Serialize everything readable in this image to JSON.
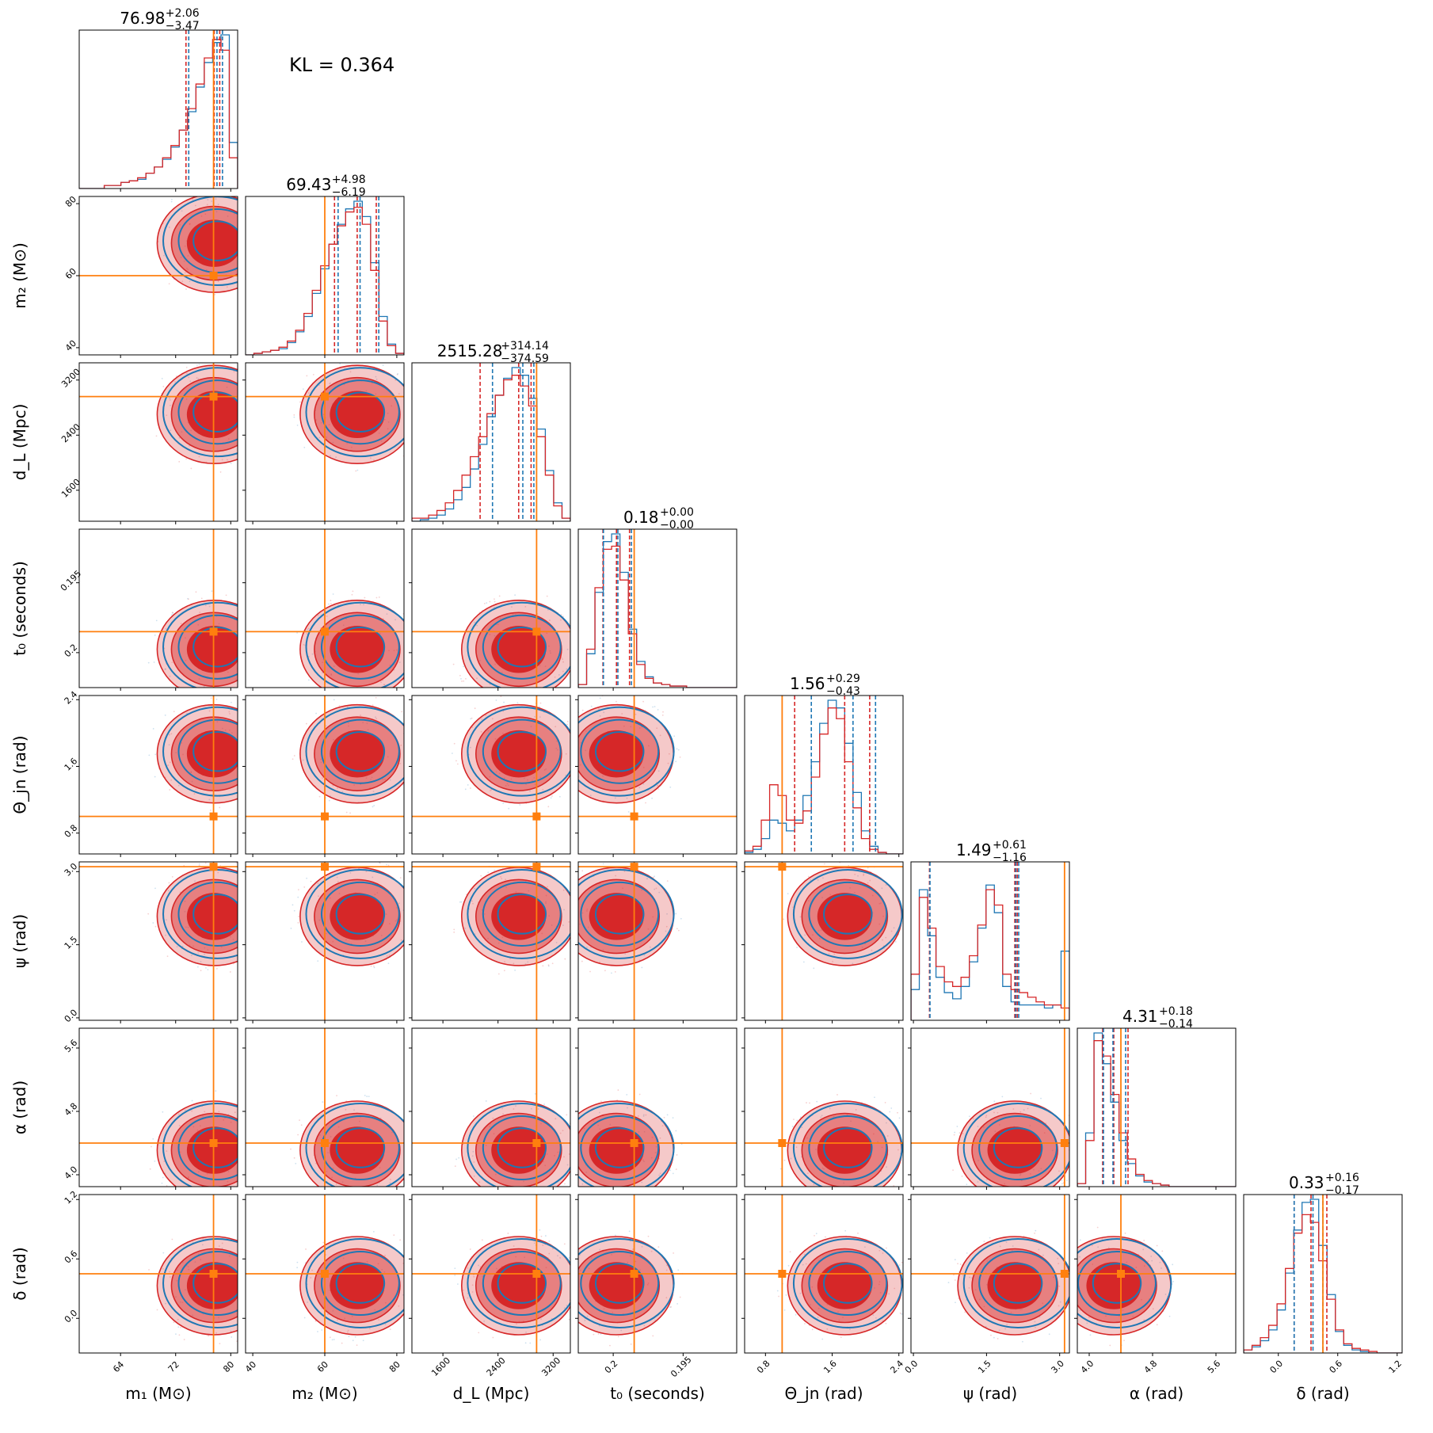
{
  "chart_data": {
    "type": "corner",
    "kl_label": "KL = 0.364",
    "series": [
      {
        "name": "",
        "color": "#d62728"
      },
      {
        "name": "",
        "color": "#1f77b4"
      }
    ],
    "truth_color": "#ff7f0e",
    "params": [
      {
        "key": "m1",
        "label": "m₁ (M⊙)",
        "range": [
          58,
          81
        ],
        "ticks": [
          64,
          72,
          80
        ],
        "truth": 77.5,
        "title": {
          "main": "76.98",
          "plus": "+2.06",
          "minus": "−3.47"
        },
        "quant_red": [
          73.5,
          77.6,
          78.4
        ],
        "quant_blue": [
          73.9,
          78.0,
          78.8
        ],
        "hist_red": [
          0,
          0,
          0,
          0.02,
          0.02,
          0.04,
          0.05,
          0.07,
          0.1,
          0.14,
          0.2,
          0.28,
          0.38,
          0.52,
          0.68,
          0.85,
          0.97,
          0.9,
          0.2
        ],
        "hist_blue": [
          0,
          0,
          0,
          0.02,
          0.02,
          0.04,
          0.05,
          0.06,
          0.1,
          0.14,
          0.19,
          0.27,
          0.38,
          0.5,
          0.66,
          0.82,
          0.95,
          1.0,
          0.3
        ]
      },
      {
        "key": "m2",
        "label": "m₂ (M⊙)",
        "range": [
          38,
          82
        ],
        "ticks": [
          40,
          60,
          80
        ],
        "truth": 60,
        "title": {
          "main": "69.43",
          "plus": "+4.98",
          "minus": "−6.19"
        },
        "quant_red": [
          62.7,
          69.0,
          74.3
        ],
        "quant_blue": [
          63.7,
          69.8,
          75.0
        ],
        "hist_red": [
          0,
          0.01,
          0.02,
          0.03,
          0.05,
          0.09,
          0.16,
          0.27,
          0.42,
          0.58,
          0.72,
          0.84,
          0.93,
          0.96,
          0.85,
          0.55,
          0.22,
          0.06,
          0.01
        ],
        "hist_blue": [
          0,
          0.01,
          0.02,
          0.03,
          0.04,
          0.08,
          0.15,
          0.25,
          0.4,
          0.56,
          0.72,
          0.85,
          0.95,
          1.0,
          0.9,
          0.6,
          0.25,
          0.07,
          0.01
        ]
      },
      {
        "key": "dL",
        "label": "d_L (Mpc)",
        "range": [
          1150,
          3450
        ],
        "ticks": [
          1600,
          2400,
          3200
        ],
        "truth": 2960,
        "title": {
          "main": "2515.28",
          "plus": "+314.14",
          "minus": "−374.59"
        },
        "quant_red": [
          2140,
          2700,
          2880
        ],
        "quant_blue": [
          2320,
          2760,
          2920
        ],
        "hist_red": [
          0.02,
          0.02,
          0.04,
          0.07,
          0.12,
          0.2,
          0.3,
          0.42,
          0.55,
          0.7,
          0.82,
          0.92,
          0.95,
          0.88,
          0.75,
          0.55,
          0.3,
          0.1,
          0.02
        ],
        "hist_blue": [
          0,
          0.01,
          0.02,
          0.04,
          0.08,
          0.14,
          0.22,
          0.34,
          0.5,
          0.68,
          0.82,
          0.93,
          1.0,
          0.95,
          0.8,
          0.6,
          0.33,
          0.12,
          0.02
        ]
      },
      {
        "key": "t0",
        "label": "t₀ (seconds)",
        "range": [
          0.1725,
          0.2065
        ],
        "ticks": [
          0.18,
          0.195
        ],
        "truth": 0.1845,
        "title": {
          "main": "0.18",
          "plus": "+0.00",
          "minus": "−0.00"
        },
        "quant_red": [
          0.1778,
          0.1807,
          0.1835
        ],
        "quant_blue": [
          0.1779,
          0.181,
          0.1839
        ],
        "hist_red": [
          0.02,
          0.25,
          0.65,
          0.9,
          0.92,
          0.7,
          0.35,
          0.15,
          0.06,
          0.03,
          0.02,
          0.01,
          0.01,
          0,
          0,
          0,
          0,
          0,
          0
        ],
        "hist_blue": [
          0.02,
          0.22,
          0.62,
          0.95,
          1.0,
          0.75,
          0.38,
          0.17,
          0.07,
          0.03,
          0.02,
          0.01,
          0.01,
          0,
          0,
          0,
          0,
          0,
          0
        ]
      },
      {
        "key": "theta",
        "label": "Θ_jn (rad)",
        "range": [
          0.55,
          2.45
        ],
        "ticks": [
          0.8,
          1.6,
          2.4
        ],
        "truth": 1.0,
        "title": {
          "main": "1.56",
          "plus": "+0.29",
          "minus": "−0.43"
        },
        "quant_red": [
          1.15,
          1.75,
          2.05
        ],
        "quant_blue": [
          1.35,
          1.85,
          2.12
        ],
        "hist_red": [
          0.02,
          0.05,
          0.22,
          0.45,
          0.38,
          0.22,
          0.2,
          0.28,
          0.5,
          0.78,
          0.95,
          0.88,
          0.6,
          0.3,
          0.1,
          0.03,
          0.01,
          0,
          0
        ],
        "hist_blue": [
          0.01,
          0.03,
          0.1,
          0.22,
          0.2,
          0.15,
          0.22,
          0.38,
          0.6,
          0.85,
          1.0,
          0.95,
          0.72,
          0.4,
          0.15,
          0.05,
          0.01,
          0,
          0
        ]
      },
      {
        "key": "psi",
        "label": "ψ (rad)",
        "range": [
          -0.05,
          3.2
        ],
        "ticks": [
          0.0,
          1.5,
          3.0
        ],
        "truth": 3.1,
        "title": {
          "main": "1.49",
          "plus": "+0.61",
          "minus": "−1.16"
        },
        "quant_red": [
          0.33,
          2.08,
          2.13
        ],
        "quant_blue": [
          0.34,
          2.1,
          2.16
        ],
        "hist_red": [
          0.3,
          0.8,
          0.6,
          0.35,
          0.25,
          0.22,
          0.28,
          0.42,
          0.62,
          0.85,
          0.75,
          0.3,
          0.2,
          0.18,
          0.15,
          0.12,
          0.1,
          0.1,
          0.08
        ],
        "hist_blue": [
          0.2,
          0.85,
          0.55,
          0.28,
          0.18,
          0.14,
          0.22,
          0.38,
          0.6,
          0.88,
          0.7,
          0.22,
          0.12,
          0.1,
          0.1,
          0.1,
          0.08,
          0.1,
          0.45
        ]
      },
      {
        "key": "alpha",
        "label": "α (rad)",
        "range": [
          3.85,
          5.85
        ],
        "ticks": [
          4.0,
          4.8,
          5.6
        ],
        "truth": 4.4,
        "title": {
          "main": "4.31",
          "plus": "+0.18",
          "minus": "−0.14"
        },
        "quant_red": [
          4.17,
          4.31,
          4.49
        ],
        "quant_blue": [
          4.18,
          4.3,
          4.46
        ],
        "hist_red": [
          0.02,
          0.3,
          0.95,
          0.85,
          0.6,
          0.35,
          0.18,
          0.08,
          0.04,
          0.02,
          0.01,
          0,
          0,
          0,
          0,
          0,
          0,
          0,
          0
        ],
        "hist_blue": [
          0.02,
          0.35,
          1.0,
          0.8,
          0.55,
          0.3,
          0.15,
          0.07,
          0.03,
          0.02,
          0.01,
          0,
          0,
          0,
          0,
          0,
          0,
          0,
          0
        ]
      },
      {
        "key": "delta",
        "label": "δ (rad)",
        "range": [
          -0.35,
          1.25
        ],
        "ticks": [
          0.0,
          0.6,
          1.2
        ],
        "truth": 0.45,
        "title": {
          "main": "0.33",
          "plus": "+0.16",
          "minus": "−0.17"
        },
        "quant_red": [
          0.16,
          0.33,
          0.49
        ],
        "quant_blue": [
          0.16,
          0.35,
          0.45
        ],
        "hist_red": [
          0.02,
          0.05,
          0.1,
          0.18,
          0.32,
          0.55,
          0.78,
          0.9,
          0.85,
          0.6,
          0.35,
          0.15,
          0.06,
          0.03,
          0.02,
          0.01,
          0,
          0,
          0
        ],
        "hist_blue": [
          0.02,
          0.04,
          0.08,
          0.15,
          0.28,
          0.52,
          0.8,
          0.98,
          1.0,
          0.7,
          0.38,
          0.14,
          0.05,
          0.02,
          0.01,
          0,
          0,
          0,
          0
        ]
      }
    ]
  }
}
